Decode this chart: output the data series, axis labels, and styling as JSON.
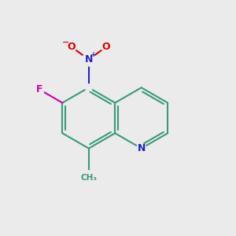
{
  "bg_color": "#ebebeb",
  "bond_color": "#3a9a7a",
  "bond_width": 1.5,
  "N_color": "#2222cc",
  "F_color": "#cc00aa",
  "O_color": "#dd0000",
  "methyl_color": "#3a9a7a",
  "figsize": [
    3.0,
    3.0
  ],
  "dpi": 100,
  "xlim": [
    0,
    10
  ],
  "ylim": [
    0,
    10
  ]
}
